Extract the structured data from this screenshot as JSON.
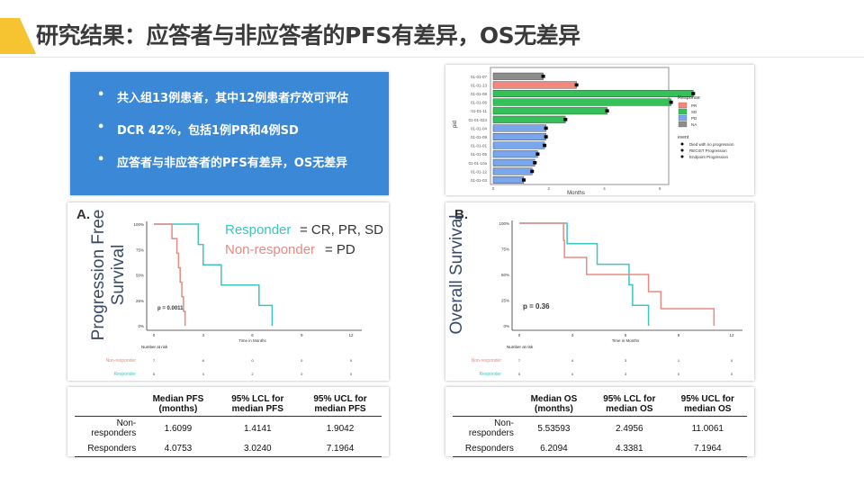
{
  "title": "研究结果：应答者与非应答者的PFS有差异，OS无差异",
  "bullets": [
    "共入组13例患者，其中12例患者疗效可评估",
    "DCR 42%，包括1例PR和4例SD",
    "应答者与非应答者的PFS有差异，OS无差异"
  ],
  "colors": {
    "PR": "#f4877b",
    "SD": "#35c05a",
    "PD": "#7aa6ec",
    "NA": "#8c8c8c",
    "responder": "#3cc6c1",
    "non_responder": "#e88a82",
    "box": "#3a88d6",
    "accent": "#f6c431"
  },
  "swimmer": {
    "ylabel": "pid",
    "xlabel": "Months",
    "xticks": [
      "0",
      "2",
      "4",
      "6"
    ],
    "legend_title": "Response",
    "legend": [
      "PR",
      "SD",
      "PD",
      "NA"
    ],
    "event_title": "event",
    "events": [
      "Died with no progression",
      "RECIST Progression",
      "Endpoint Progression"
    ],
    "bars": [
      {
        "id": "01-01-07",
        "months": 1.8,
        "response": "NA"
      },
      {
        "id": "01-01-13",
        "months": 3.0,
        "response": "PR"
      },
      {
        "id": "01-01-08",
        "months": 7.2,
        "response": "SD"
      },
      {
        "id": "01-01-06",
        "months": 6.4,
        "response": "SD"
      },
      {
        "id": "01-01-11",
        "months": 4.1,
        "response": "SD"
      },
      {
        "id": "01-01-024",
        "months": 2.6,
        "response": "SD"
      },
      {
        "id": "01-01-04",
        "months": 1.9,
        "response": "PD"
      },
      {
        "id": "01-01-09",
        "months": 1.9,
        "response": "PD"
      },
      {
        "id": "01-01-01",
        "months": 1.85,
        "response": "PD"
      },
      {
        "id": "01-01-05",
        "months": 1.6,
        "response": "PD"
      },
      {
        "id": "01-01-10a",
        "months": 1.5,
        "response": "PD"
      },
      {
        "id": "01-01-12",
        "months": 1.4,
        "response": "PD"
      },
      {
        "id": "01-01-03",
        "months": 1.1,
        "response": "PD"
      }
    ]
  },
  "km": [
    {
      "label": "A.",
      "ylabel": "Progression Free Survival",
      "xlabel": "Time in Months",
      "p": "p = 0.0011",
      "legend": [
        "Responder",
        "= CR, PR, SD",
        "Non-responder",
        "= PD"
      ],
      "yticks": [
        "100%",
        "75%",
        "50%",
        "25%",
        "0%"
      ],
      "xticks": [
        "0",
        "3",
        "6",
        "9",
        "12"
      ],
      "risk_title": "Number at risk",
      "risk_labels": [
        "Non-responder",
        "Responder"
      ],
      "risk": [
        [
          "7",
          "6",
          "0",
          "0",
          "0"
        ],
        [
          "5",
          "4",
          "2",
          "0",
          "0"
        ]
      ],
      "series": [
        {
          "name": "Responder",
          "t": [
            0,
            2.7,
            3,
            4.1,
            6.4,
            7.2
          ],
          "s": [
            1,
            0.8,
            0.6,
            0.4,
            0.2,
            0
          ]
        },
        {
          "name": "Non-responder",
          "t": [
            0,
            1.1,
            1.4,
            1.5,
            1.6,
            1.7,
            1.8,
            1.9
          ],
          "s": [
            1,
            0.857,
            0.714,
            0.571,
            0.429,
            0.286,
            0.143,
            0
          ]
        }
      ]
    },
    {
      "label": "B.",
      "ylabel": "Overall Survival",
      "xlabel": "Time in Months",
      "p": "p = 0.36",
      "yticks": [
        "100%",
        "75%",
        "50%",
        "25%",
        "0%"
      ],
      "xticks": [
        "0",
        "3",
        "6",
        "9",
        "12"
      ],
      "risk_title": "Number at risk",
      "risk_labels": [
        "Non-responder",
        "Responder"
      ],
      "risk": [
        [
          "7",
          "4",
          "3",
          "1",
          "0"
        ],
        [
          "5",
          "4",
          "3",
          "0",
          "0"
        ]
      ],
      "series": [
        {
          "name": "Responder",
          "t": [
            0,
            2.7,
            4.4,
            6.2,
            6.4,
            7.3
          ],
          "s": [
            1,
            0.8,
            0.6,
            0.4,
            0.2,
            0
          ]
        },
        {
          "name": "Non-responder",
          "t": [
            0,
            2.5,
            2.55,
            3.8,
            7.3,
            8,
            11
          ],
          "s": [
            1,
            0.833,
            0.667,
            0.5,
            0.333,
            0.167,
            0
          ]
        }
      ]
    }
  ],
  "tables": [
    {
      "headers": [
        "",
        "Median PFS (months)",
        "95% LCL for median PFS",
        "95% UCL for median PFS"
      ],
      "rows": [
        [
          "Non-responders",
          "1.6099",
          "1.4141",
          "1.9042"
        ],
        [
          "Responders",
          "4.0753",
          "3.0240",
          "7.1964"
        ]
      ]
    },
    {
      "headers": [
        "",
        "Median OS (months)",
        "95% LCL for median OS",
        "95% UCL for median OS"
      ],
      "rows": [
        [
          "Non-responders",
          "5.53593",
          "2.4956",
          "11.0061"
        ],
        [
          "Responders",
          "6.2094",
          "4.3381",
          "7.1964"
        ]
      ]
    }
  ]
}
